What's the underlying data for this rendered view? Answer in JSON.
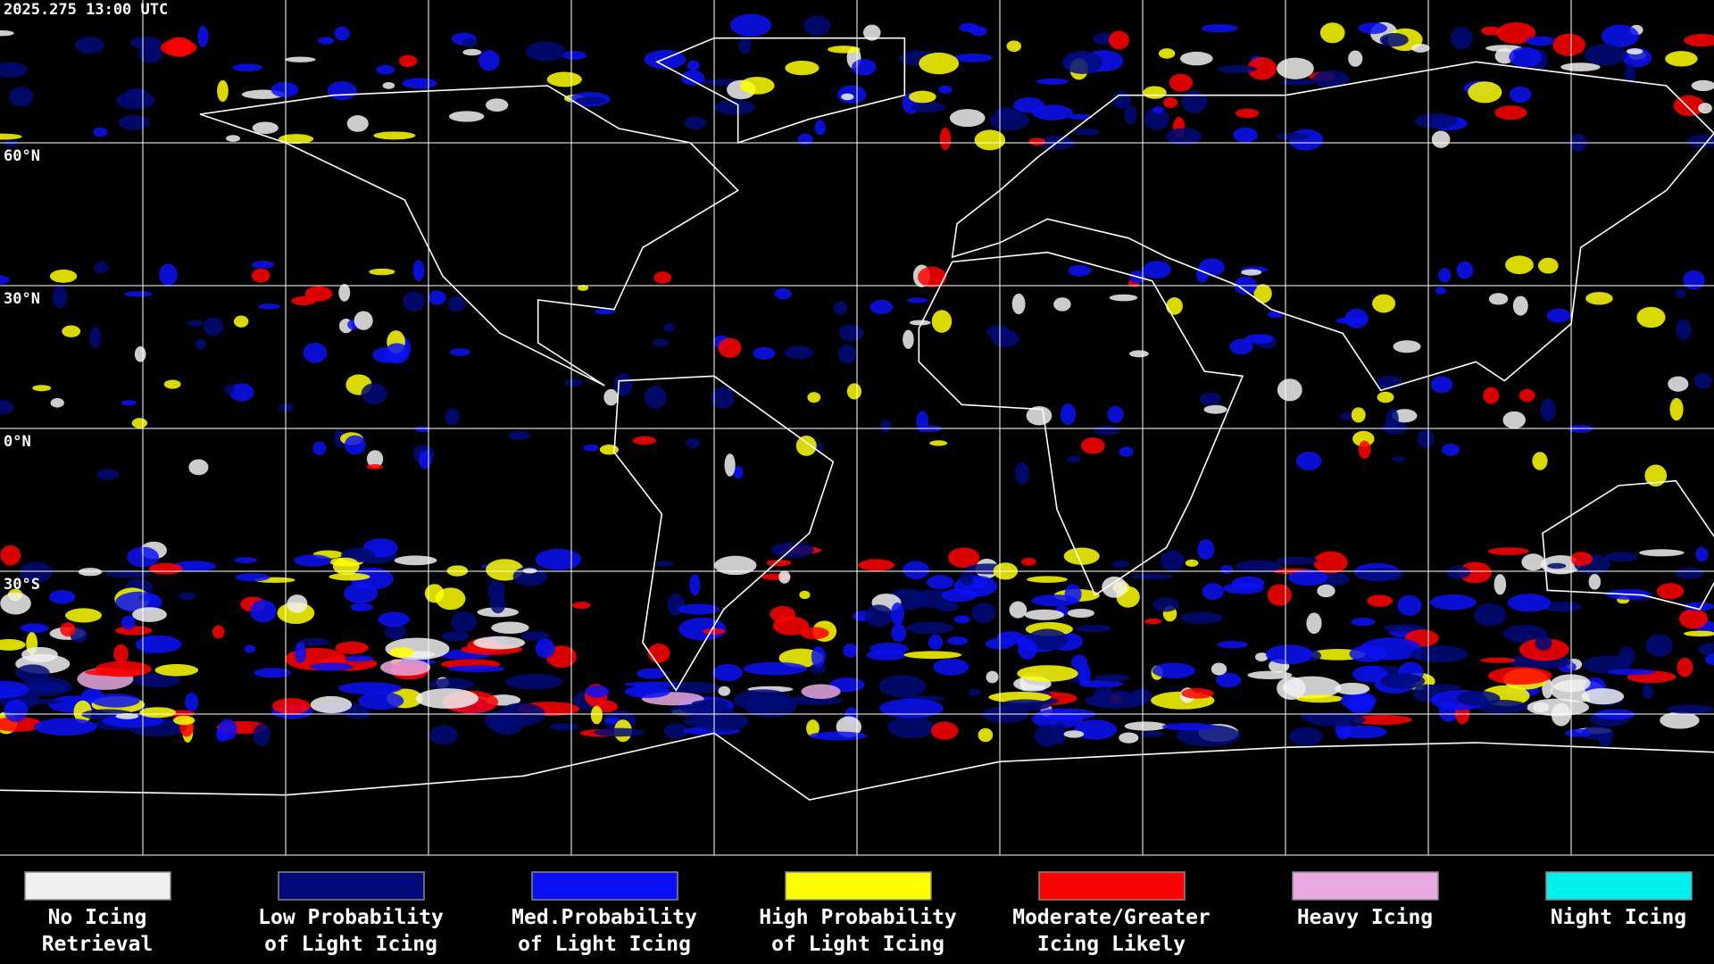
{
  "header": {
    "timestamp": "2025.275 13:00 UTC"
  },
  "map": {
    "lat_labels": [
      "60°N",
      "30°N",
      "0°N",
      "30°S"
    ]
  },
  "legend": {
    "items": [
      {
        "label": [
          "No Icing",
          "Retrieval"
        ],
        "color": "#f0f0f0"
      },
      {
        "label": [
          "Low Probability",
          "of Light Icing"
        ],
        "color": "#000a78"
      },
      {
        "label": [
          "Med.Probability",
          "of Light Icing"
        ],
        "color": "#0a10f5"
      },
      {
        "label": [
          "High Probability",
          "of Light Icing"
        ],
        "color": "#ffff00"
      },
      {
        "label": [
          "Moderate/Greater",
          "Icing Likely"
        ],
        "color": "#ff0000"
      },
      {
        "label": [
          "Heavy Icing",
          ""
        ],
        "color": "#e8a8e0"
      },
      {
        "label": [
          "Night Icing",
          ""
        ],
        "color": "#00f0f0"
      }
    ]
  }
}
